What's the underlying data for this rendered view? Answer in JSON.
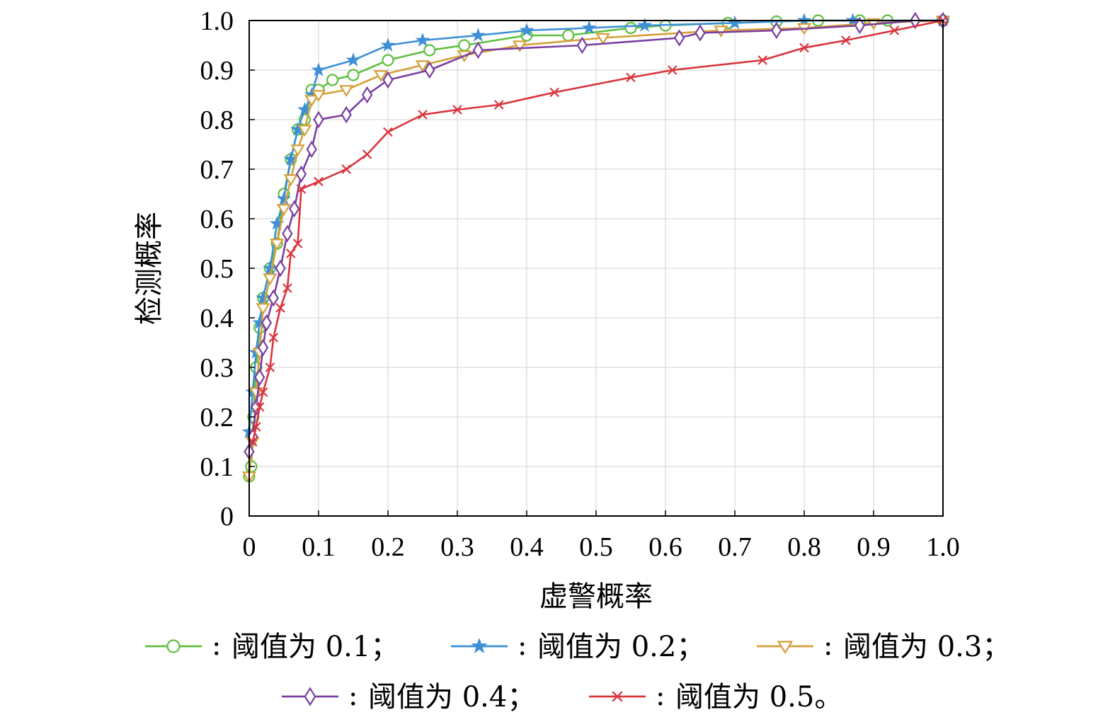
{
  "chart_data": {
    "type": "line",
    "xlabel": "虚警概率",
    "ylabel": "检测概率",
    "xlim": [
      0,
      1
    ],
    "ylim": [
      0,
      1
    ],
    "grid": true,
    "legend_position": "bottom",
    "x_ticks": [
      "0",
      "0.1",
      "0.2",
      "0.3",
      "0.4",
      "0.5",
      "0.6",
      "0.7",
      "0.8",
      "0.9",
      "1.0"
    ],
    "y_ticks": [
      "0",
      "0.1",
      "0.2",
      "0.3",
      "0.4",
      "0.5",
      "0.6",
      "0.7",
      "0.8",
      "0.9",
      "1.0"
    ],
    "series": [
      {
        "name": "阈值为 0.1；",
        "color": "#5fbf3f",
        "marker": "circle",
        "points": [
          [
            0.0,
            0.08
          ],
          [
            0.003,
            0.1
          ],
          [
            0.006,
            0.2
          ],
          [
            0.01,
            0.3
          ],
          [
            0.015,
            0.38
          ],
          [
            0.02,
            0.44
          ],
          [
            0.03,
            0.5
          ],
          [
            0.04,
            0.55
          ],
          [
            0.05,
            0.65
          ],
          [
            0.06,
            0.72
          ],
          [
            0.07,
            0.78
          ],
          [
            0.08,
            0.8
          ],
          [
            0.09,
            0.86
          ],
          [
            0.1,
            0.86
          ],
          [
            0.12,
            0.88
          ],
          [
            0.15,
            0.89
          ],
          [
            0.2,
            0.92
          ],
          [
            0.26,
            0.94
          ],
          [
            0.31,
            0.95
          ],
          [
            0.4,
            0.97
          ],
          [
            0.46,
            0.97
          ],
          [
            0.55,
            0.985
          ],
          [
            0.6,
            0.99
          ],
          [
            0.69,
            0.995
          ],
          [
            0.76,
            0.998
          ],
          [
            0.82,
            1.0
          ],
          [
            0.88,
            1.0
          ],
          [
            0.92,
            1.0
          ],
          [
            1.0,
            1.0
          ]
        ]
      },
      {
        "name": "阈值为 0.2；",
        "color": "#3d8fd6",
        "marker": "star",
        "points": [
          [
            0.0,
            0.17
          ],
          [
            0.005,
            0.25
          ],
          [
            0.01,
            0.33
          ],
          [
            0.015,
            0.39
          ],
          [
            0.02,
            0.44
          ],
          [
            0.03,
            0.5
          ],
          [
            0.04,
            0.59
          ],
          [
            0.05,
            0.64
          ],
          [
            0.06,
            0.72
          ],
          [
            0.07,
            0.78
          ],
          [
            0.08,
            0.82
          ],
          [
            0.09,
            0.85
          ],
          [
            0.1,
            0.9
          ],
          [
            0.15,
            0.92
          ],
          [
            0.2,
            0.95
          ],
          [
            0.25,
            0.96
          ],
          [
            0.33,
            0.97
          ],
          [
            0.4,
            0.98
          ],
          [
            0.49,
            0.985
          ],
          [
            0.57,
            0.99
          ],
          [
            0.7,
            0.995
          ],
          [
            0.8,
            1.0
          ],
          [
            0.87,
            1.0
          ],
          [
            1.0,
            1.0
          ]
        ]
      },
      {
        "name": "阈值为 0.3；",
        "color": "#d4a03a",
        "marker": "triangle-down",
        "points": [
          [
            0.0,
            0.08
          ],
          [
            0.005,
            0.15
          ],
          [
            0.01,
            0.25
          ],
          [
            0.015,
            0.33
          ],
          [
            0.02,
            0.42
          ],
          [
            0.03,
            0.48
          ],
          [
            0.04,
            0.55
          ],
          [
            0.05,
            0.62
          ],
          [
            0.06,
            0.68
          ],
          [
            0.07,
            0.74
          ],
          [
            0.08,
            0.78
          ],
          [
            0.09,
            0.84
          ],
          [
            0.1,
            0.85
          ],
          [
            0.14,
            0.86
          ],
          [
            0.19,
            0.89
          ],
          [
            0.25,
            0.91
          ],
          [
            0.31,
            0.93
          ],
          [
            0.39,
            0.95
          ],
          [
            0.51,
            0.965
          ],
          [
            0.68,
            0.98
          ],
          [
            0.8,
            0.985
          ],
          [
            0.9,
            0.995
          ],
          [
            1.0,
            1.0
          ]
        ]
      },
      {
        "name": "阈值为 0.4；",
        "color": "#7a3fa0",
        "marker": "diamond",
        "points": [
          [
            0.0,
            0.13
          ],
          [
            0.005,
            0.16
          ],
          [
            0.01,
            0.22
          ],
          [
            0.015,
            0.28
          ],
          [
            0.02,
            0.34
          ],
          [
            0.025,
            0.39
          ],
          [
            0.035,
            0.44
          ],
          [
            0.045,
            0.5
          ],
          [
            0.055,
            0.57
          ],
          [
            0.065,
            0.62
          ],
          [
            0.075,
            0.69
          ],
          [
            0.09,
            0.74
          ],
          [
            0.1,
            0.8
          ],
          [
            0.14,
            0.81
          ],
          [
            0.17,
            0.85
          ],
          [
            0.2,
            0.88
          ],
          [
            0.26,
            0.9
          ],
          [
            0.33,
            0.94
          ],
          [
            0.48,
            0.95
          ],
          [
            0.62,
            0.965
          ],
          [
            0.65,
            0.975
          ],
          [
            0.76,
            0.98
          ],
          [
            0.88,
            0.99
          ],
          [
            0.96,
            1.0
          ],
          [
            1.0,
            1.0
          ]
        ]
      },
      {
        "name": "阈值为 0.5。",
        "color": "#d9343d",
        "marker": "x",
        "points": [
          [
            0.005,
            0.15
          ],
          [
            0.01,
            0.18
          ],
          [
            0.015,
            0.22
          ],
          [
            0.02,
            0.25
          ],
          [
            0.03,
            0.3
          ],
          [
            0.035,
            0.36
          ],
          [
            0.045,
            0.42
          ],
          [
            0.055,
            0.46
          ],
          [
            0.06,
            0.53
          ],
          [
            0.07,
            0.55
          ],
          [
            0.075,
            0.66
          ],
          [
            0.1,
            0.675
          ],
          [
            0.14,
            0.7
          ],
          [
            0.17,
            0.73
          ],
          [
            0.2,
            0.775
          ],
          [
            0.25,
            0.81
          ],
          [
            0.3,
            0.82
          ],
          [
            0.36,
            0.83
          ],
          [
            0.44,
            0.855
          ],
          [
            0.55,
            0.885
          ],
          [
            0.61,
            0.9
          ],
          [
            0.74,
            0.92
          ],
          [
            0.8,
            0.945
          ],
          [
            0.86,
            0.96
          ],
          [
            0.93,
            0.98
          ],
          [
            1.0,
            1.0
          ]
        ]
      }
    ]
  }
}
